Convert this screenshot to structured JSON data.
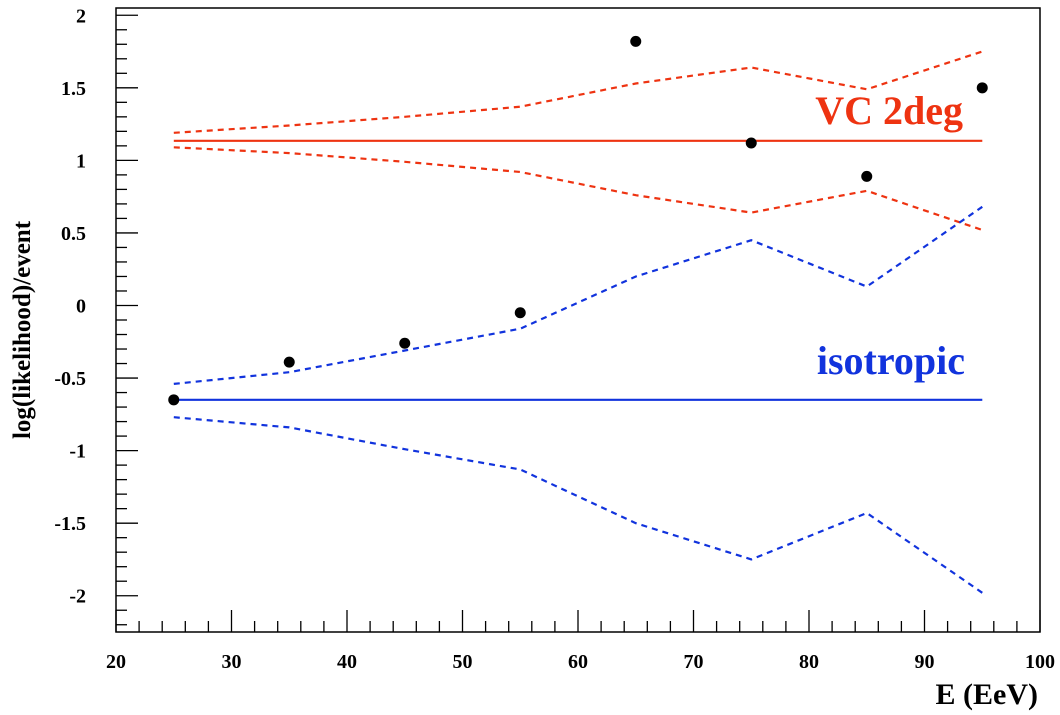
{
  "chart_data": {
    "type": "scatter",
    "xlabel": "E (EeV)",
    "ylabel": "log(likelihood)/event",
    "xlim": [
      20,
      100
    ],
    "ylim": [
      -2.25,
      2.05
    ],
    "x_major_ticks": [
      20,
      30,
      40,
      50,
      60,
      70,
      80,
      90,
      100
    ],
    "x_tick_labels": [
      "20",
      "30",
      "40",
      "50",
      "60",
      "70",
      "80",
      "90",
      "100"
    ],
    "y_major_ticks": [
      -2,
      -1.5,
      -1,
      -0.5,
      0,
      0.5,
      1,
      1.5,
      2
    ],
    "y_tick_labels": [
      "-2",
      "-1.5",
      "-1",
      "-0.5",
      "0",
      "0.5",
      "1",
      "1.5",
      "2"
    ],
    "grid": false,
    "colors": {
      "vc": "#ee3311",
      "iso": "#1133dd",
      "points": "#000000",
      "axes": "#000000"
    },
    "annotations": [
      {
        "text": "VC 2deg",
        "color": "#ee3311"
      },
      {
        "text": "isotropic",
        "color": "#1133dd"
      }
    ],
    "points": {
      "x": [
        25,
        35,
        45,
        55,
        65,
        75,
        85,
        95
      ],
      "y": [
        -0.65,
        -0.39,
        -0.26,
        -0.05,
        1.82,
        1.12,
        0.89,
        1.5
      ]
    },
    "vc_mean": {
      "x": [
        25,
        95
      ],
      "y": [
        1.135,
        1.135
      ]
    },
    "vc_upper": {
      "x": [
        25,
        35,
        45,
        55,
        65,
        75,
        85,
        95
      ],
      "y": [
        1.19,
        1.24,
        1.3,
        1.37,
        1.53,
        1.64,
        1.49,
        1.75
      ]
    },
    "vc_lower": {
      "x": [
        25,
        35,
        45,
        55,
        65,
        75,
        85,
        95
      ],
      "y": [
        1.09,
        1.05,
        0.99,
        0.92,
        0.76,
        0.64,
        0.79,
        0.52
      ]
    },
    "iso_mean": {
      "x": [
        25,
        95
      ],
      "y": [
        -0.65,
        -0.65
      ]
    },
    "iso_upper": {
      "x": [
        25,
        35,
        45,
        55,
        65,
        75,
        85,
        95
      ],
      "y": [
        -0.54,
        -0.46,
        -0.31,
        -0.16,
        0.2,
        0.45,
        0.13,
        0.68
      ]
    },
    "iso_lower": {
      "x": [
        25,
        35,
        45,
        55,
        65,
        75,
        85,
        95
      ],
      "y": [
        -0.77,
        -0.84,
        -0.99,
        -1.13,
        -1.5,
        -1.75,
        -1.43,
        -1.98
      ]
    }
  }
}
